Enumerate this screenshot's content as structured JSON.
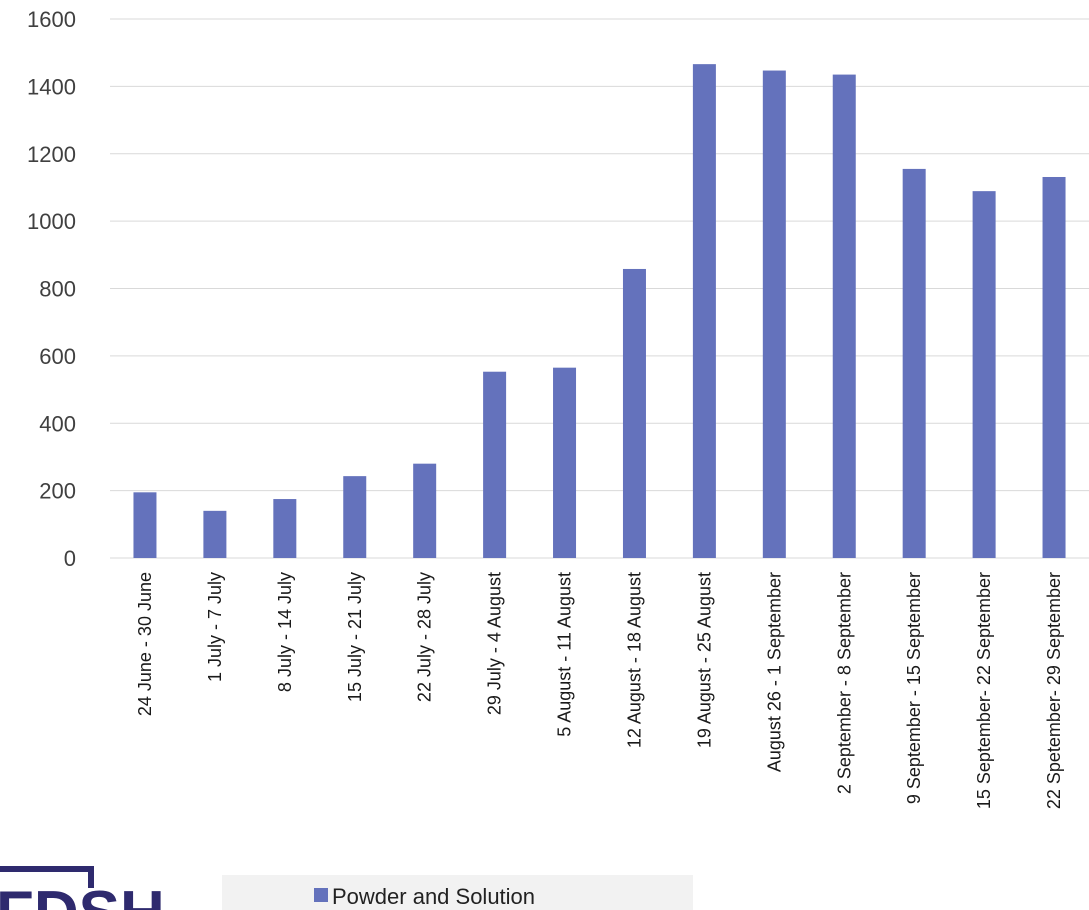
{
  "chart_data": {
    "type": "bar",
    "categories": [
      "24 June - 30 June",
      "1 July - 7 July",
      "8 July - 14 July",
      "15 July - 21 July",
      "22 July - 28 July",
      "29 July  - 4 August",
      "5 August  - 11 August",
      "12 August - 18 August",
      "19 August - 25 August",
      "August 26 - 1 September",
      "2 September  - 8 September",
      "9 September - 15 September",
      "15 September- 22 September",
      "22 Spetember- 29 September"
    ],
    "series": [
      {
        "name": "Powder and Solution",
        "color": "#6472bc",
        "values": [
          195,
          140,
          175,
          243,
          280,
          553,
          565,
          858,
          1466,
          1447,
          1435,
          1155,
          1089,
          1131
        ]
      }
    ],
    "title": "",
    "xlabel": "",
    "ylabel": "",
    "ylim": [
      0,
      1600
    ],
    "yticks": [
      0,
      200,
      400,
      600,
      800,
      1000,
      1200,
      1400,
      1600
    ],
    "grid": true,
    "legend_position": "bottom"
  },
  "colors": {
    "gridline": "#d9d9d9",
    "legend_background": "#f2f2f2",
    "logo": "#2e2a6e"
  },
  "logo": {
    "icon": "organization-logo",
    "text": "FDSH"
  }
}
